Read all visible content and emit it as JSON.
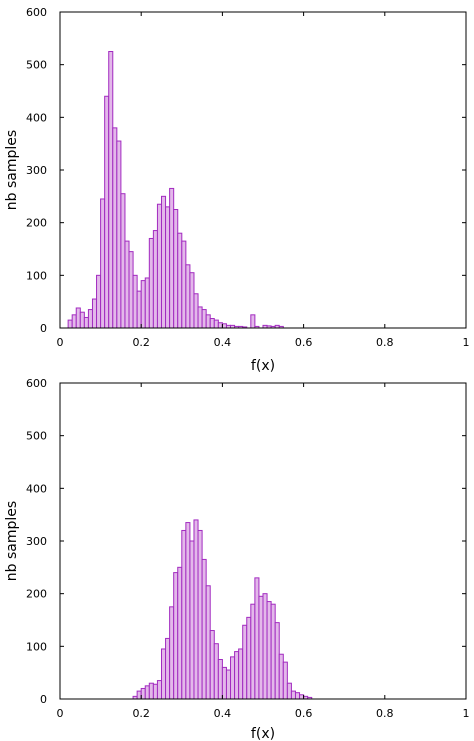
{
  "chart_data": [
    {
      "type": "bar",
      "subtype": "histogram",
      "xlabel": "f(x)",
      "ylabel": "nb samples",
      "xlim": [
        0,
        1
      ],
      "ylim": [
        0,
        600
      ],
      "x_ticks": [
        "0",
        "0.2",
        "0.4",
        "0.6",
        "0.8",
        "1"
      ],
      "y_ticks": [
        "0",
        "100",
        "200",
        "300",
        "400",
        "500",
        "600"
      ],
      "grid": false,
      "bar_color": "#e3b8ea",
      "edge_color": "#a22bc0",
      "bin_width": 0.01,
      "bins": [
        {
          "x": 0.02,
          "y": 15
        },
        {
          "x": 0.03,
          "y": 25
        },
        {
          "x": 0.04,
          "y": 38
        },
        {
          "x": 0.05,
          "y": 30
        },
        {
          "x": 0.06,
          "y": 20
        },
        {
          "x": 0.07,
          "y": 35
        },
        {
          "x": 0.08,
          "y": 55
        },
        {
          "x": 0.09,
          "y": 100
        },
        {
          "x": 0.1,
          "y": 245
        },
        {
          "x": 0.11,
          "y": 440
        },
        {
          "x": 0.12,
          "y": 525
        },
        {
          "x": 0.13,
          "y": 380
        },
        {
          "x": 0.14,
          "y": 355
        },
        {
          "x": 0.15,
          "y": 255
        },
        {
          "x": 0.16,
          "y": 165
        },
        {
          "x": 0.17,
          "y": 145
        },
        {
          "x": 0.18,
          "y": 100
        },
        {
          "x": 0.19,
          "y": 70
        },
        {
          "x": 0.2,
          "y": 90
        },
        {
          "x": 0.21,
          "y": 95
        },
        {
          "x": 0.22,
          "y": 170
        },
        {
          "x": 0.23,
          "y": 185
        },
        {
          "x": 0.24,
          "y": 235
        },
        {
          "x": 0.25,
          "y": 250
        },
        {
          "x": 0.26,
          "y": 230
        },
        {
          "x": 0.27,
          "y": 265
        },
        {
          "x": 0.28,
          "y": 225
        },
        {
          "x": 0.29,
          "y": 180
        },
        {
          "x": 0.3,
          "y": 165
        },
        {
          "x": 0.31,
          "y": 120
        },
        {
          "x": 0.32,
          "y": 105
        },
        {
          "x": 0.33,
          "y": 65
        },
        {
          "x": 0.34,
          "y": 40
        },
        {
          "x": 0.35,
          "y": 35
        },
        {
          "x": 0.36,
          "y": 25
        },
        {
          "x": 0.37,
          "y": 18
        },
        {
          "x": 0.38,
          "y": 15
        },
        {
          "x": 0.39,
          "y": 10
        },
        {
          "x": 0.4,
          "y": 8
        },
        {
          "x": 0.41,
          "y": 5
        },
        {
          "x": 0.42,
          "y": 5
        },
        {
          "x": 0.43,
          "y": 3
        },
        {
          "x": 0.44,
          "y": 3
        },
        {
          "x": 0.45,
          "y": 2
        },
        {
          "x": 0.47,
          "y": 25
        },
        {
          "x": 0.48,
          "y": 3
        },
        {
          "x": 0.5,
          "y": 5
        },
        {
          "x": 0.51,
          "y": 4
        },
        {
          "x": 0.52,
          "y": 3
        },
        {
          "x": 0.53,
          "y": 5
        },
        {
          "x": 0.54,
          "y": 3
        }
      ]
    },
    {
      "type": "bar",
      "subtype": "histogram",
      "xlabel": "f(x)",
      "ylabel": "nb samples",
      "xlim": [
        0,
        1
      ],
      "ylim": [
        0,
        600
      ],
      "x_ticks": [
        "0",
        "0.2",
        "0.4",
        "0.6",
        "0.8",
        "1"
      ],
      "y_ticks": [
        "0",
        "100",
        "200",
        "300",
        "400",
        "500",
        "600"
      ],
      "grid": false,
      "bar_color": "#e3b8ea",
      "edge_color": "#a22bc0",
      "bin_width": 0.01,
      "bins": [
        {
          "x": 0.18,
          "y": 5
        },
        {
          "x": 0.19,
          "y": 15
        },
        {
          "x": 0.2,
          "y": 20
        },
        {
          "x": 0.21,
          "y": 25
        },
        {
          "x": 0.22,
          "y": 30
        },
        {
          "x": 0.23,
          "y": 28
        },
        {
          "x": 0.24,
          "y": 35
        },
        {
          "x": 0.25,
          "y": 95
        },
        {
          "x": 0.26,
          "y": 115
        },
        {
          "x": 0.27,
          "y": 175
        },
        {
          "x": 0.28,
          "y": 240
        },
        {
          "x": 0.29,
          "y": 250
        },
        {
          "x": 0.3,
          "y": 320
        },
        {
          "x": 0.31,
          "y": 335
        },
        {
          "x": 0.32,
          "y": 300
        },
        {
          "x": 0.33,
          "y": 340
        },
        {
          "x": 0.34,
          "y": 320
        },
        {
          "x": 0.35,
          "y": 265
        },
        {
          "x": 0.36,
          "y": 215
        },
        {
          "x": 0.37,
          "y": 130
        },
        {
          "x": 0.38,
          "y": 105
        },
        {
          "x": 0.39,
          "y": 75
        },
        {
          "x": 0.4,
          "y": 60
        },
        {
          "x": 0.41,
          "y": 55
        },
        {
          "x": 0.42,
          "y": 80
        },
        {
          "x": 0.43,
          "y": 90
        },
        {
          "x": 0.44,
          "y": 95
        },
        {
          "x": 0.45,
          "y": 140
        },
        {
          "x": 0.46,
          "y": 155
        },
        {
          "x": 0.47,
          "y": 180
        },
        {
          "x": 0.48,
          "y": 230
        },
        {
          "x": 0.49,
          "y": 195
        },
        {
          "x": 0.5,
          "y": 200
        },
        {
          "x": 0.51,
          "y": 185
        },
        {
          "x": 0.52,
          "y": 180
        },
        {
          "x": 0.53,
          "y": 145
        },
        {
          "x": 0.54,
          "y": 85
        },
        {
          "x": 0.55,
          "y": 70
        },
        {
          "x": 0.56,
          "y": 30
        },
        {
          "x": 0.57,
          "y": 15
        },
        {
          "x": 0.58,
          "y": 12
        },
        {
          "x": 0.59,
          "y": 8
        },
        {
          "x": 0.6,
          "y": 5
        },
        {
          "x": 0.61,
          "y": 3
        }
      ]
    }
  ]
}
